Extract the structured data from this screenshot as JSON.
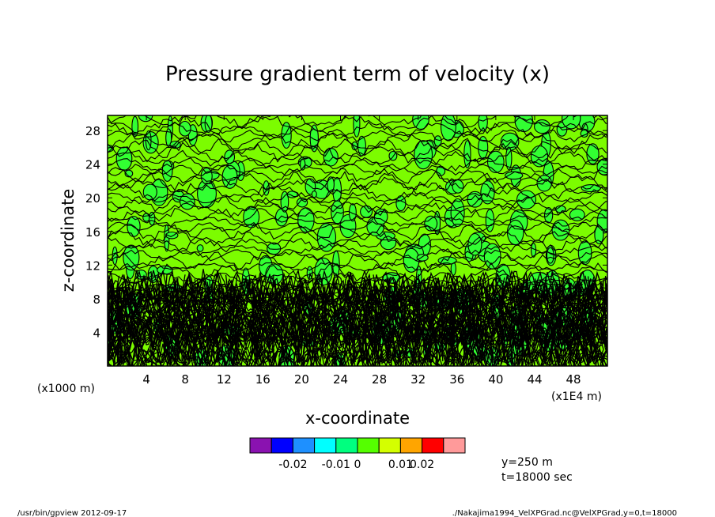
{
  "chart_data": {
    "type": "heatmap",
    "title": "Pressure gradient term of velocity (x)",
    "xlabel": "x-coordinate",
    "ylabel": "z-coordinate",
    "x_unit": "(x1E4 m)",
    "y_unit": "(x1000 m)",
    "xlim": [
      0,
      51.5
    ],
    "ylim": [
      0,
      29.8
    ],
    "x_ticks": [
      "4",
      "8",
      "12",
      "16",
      "20",
      "24",
      "28",
      "32",
      "36",
      "40",
      "44",
      "48"
    ],
    "y_ticks": [
      "4",
      "8",
      "12",
      "16",
      "20",
      "24",
      "28"
    ],
    "colorbar": {
      "colors": [
        "#8a12b0",
        "#0000ff",
        "#1e90ff",
        "#00ffff",
        "#00ff7f",
        "#55ff00",
        "#d4ff00",
        "#ffa500",
        "#ff0000",
        "#ff9a9a"
      ],
      "labels": [
        "-0.02",
        "-0.01",
        "0",
        "0.01",
        "0.02"
      ]
    },
    "fill_colors": {
      "light_green": "#7cfc00",
      "medium_green": "#32ff32"
    },
    "info": [
      "y=250 m",
      "t=18000 sec"
    ]
  },
  "footer": {
    "left": "/usr/bin/gpview   2012-09-17",
    "right": "./Nakajima1994_VelXPGrad.nc@VelXPGrad,y=0,t=18000"
  }
}
